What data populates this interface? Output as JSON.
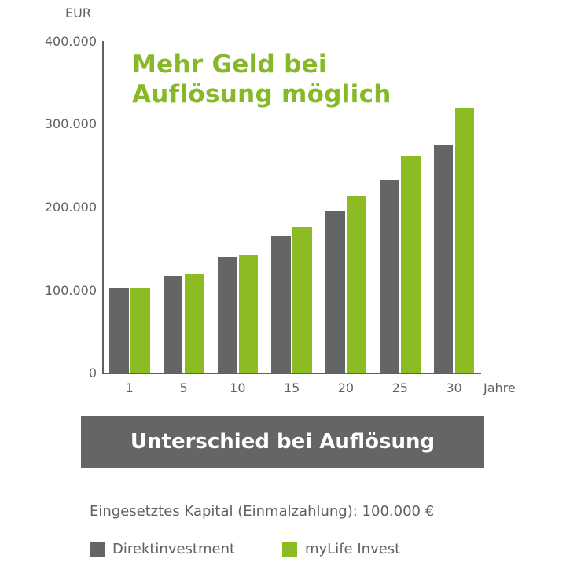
{
  "chart_data": {
    "type": "bar",
    "title": "Mehr Geld bei Auflösung möglich",
    "xlabel": "Jahre",
    "ylabel": "EUR",
    "categories": [
      "1",
      "5",
      "10",
      "15",
      "20",
      "25",
      "30"
    ],
    "series": [
      {
        "name": "Direktinvestment",
        "color": "#646567",
        "values": [
          103000,
          118000,
          140000,
          166000,
          196000,
          233000,
          276000
        ]
      },
      {
        "name": "myLife Invest",
        "color": "#8cbb22",
        "values": [
          103000,
          119000,
          142000,
          176000,
          214000,
          262000,
          320000
        ]
      }
    ],
    "yticks": [
      "0",
      "100.000",
      "200.000",
      "300.000",
      "400.000"
    ],
    "ylim": [
      0,
      400000
    ],
    "grid": false,
    "legend_position": "bottom"
  },
  "chart": {
    "unit_label": "EUR",
    "x_unit_label": "Jahre",
    "title_line1": "Mehr Geld bei",
    "title_line2": "Auflösung möglich",
    "yticks": [
      "400.000",
      "300.000",
      "200.000",
      "100.000",
      "0"
    ],
    "xticks": [
      "1",
      "5",
      "10",
      "15",
      "20",
      "25",
      "30"
    ]
  },
  "banner": {
    "label": "Unterschied bei Auflösung"
  },
  "note": "Eingesetztes Kapital (Einmalzahlung): 100.000 €",
  "legend": [
    {
      "label": "Direktinvestment",
      "color": "#646567"
    },
    {
      "label": "myLife Invest",
      "color": "#8cbb22"
    }
  ]
}
